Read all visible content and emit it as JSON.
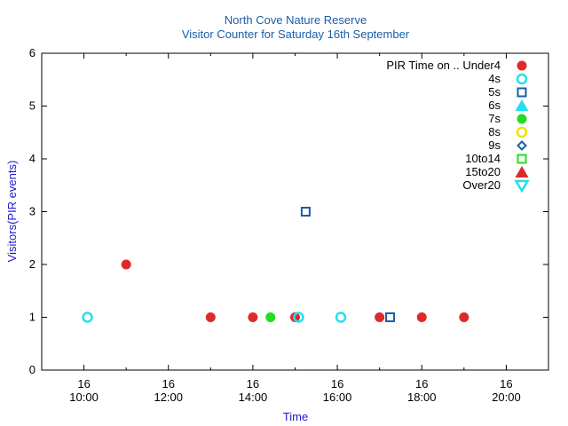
{
  "chart_data": {
    "type": "scatter",
    "title": "North Cove Nature Reserve",
    "subtitle": "Visitor Counter for Saturday 16th September",
    "xlabel": "Time",
    "ylabel": "Visitors(PIR events)",
    "legend_title": "PIR Time on ..",
    "legend_position": "top-right",
    "grid": false,
    "x_range": [
      "09:00",
      "21:00"
    ],
    "y_range": [
      0,
      6
    ],
    "x_ticks": [
      {
        "time": "10:00",
        "day": "16",
        "label": "10:00"
      },
      {
        "time": "12:00",
        "day": "16",
        "label": "12:00"
      },
      {
        "time": "14:00",
        "day": "16",
        "label": "14:00"
      },
      {
        "time": "16:00",
        "day": "16",
        "label": "16:00"
      },
      {
        "time": "18:00",
        "day": "16",
        "label": "18:00"
      },
      {
        "time": "20:00",
        "day": "16",
        "label": "20:00"
      }
    ],
    "y_ticks": [
      "0",
      "1",
      "2",
      "3",
      "4",
      "5",
      "6"
    ],
    "series": [
      {
        "name": "Under4",
        "marker": "filled-circle",
        "color": "#dd2a2a",
        "points": [
          {
            "x": "11:00",
            "y": 2
          },
          {
            "x": "13:00",
            "y": 1
          },
          {
            "x": "14:00",
            "y": 1
          },
          {
            "x": "15:00",
            "y": 1
          },
          {
            "x": "17:00",
            "y": 1
          },
          {
            "x": "18:00",
            "y": 1
          },
          {
            "x": "19:00",
            "y": 1
          }
        ]
      },
      {
        "name": "4s",
        "marker": "open-circle",
        "color": "#22e0ee",
        "points": [
          {
            "x": "10:05",
            "y": 1
          },
          {
            "x": "15:05",
            "y": 1
          },
          {
            "x": "16:05",
            "y": 1
          }
        ]
      },
      {
        "name": "5s",
        "marker": "open-square",
        "color": "#1a5ea8",
        "points": [
          {
            "x": "15:15",
            "y": 3
          },
          {
            "x": "17:15",
            "y": 1
          }
        ]
      },
      {
        "name": "6s",
        "marker": "filled-triangle-up",
        "color": "#22e0ee",
        "points": []
      },
      {
        "name": "7s",
        "marker": "filled-circle",
        "color": "#22dd22",
        "points": [
          {
            "x": "14:25",
            "y": 1
          }
        ]
      },
      {
        "name": "8s",
        "marker": "open-circle",
        "color": "#f0e000",
        "points": []
      },
      {
        "name": "9s",
        "marker": "open-diamond",
        "color": "#1a5ea8",
        "points": []
      },
      {
        "name": "10to14",
        "marker": "open-square",
        "color": "#22dd22",
        "points": []
      },
      {
        "name": "15to20",
        "marker": "filled-triangle-up",
        "color": "#dd2a2a",
        "points": []
      },
      {
        "name": "Over20",
        "marker": "open-triangle-down",
        "color": "#22e0ee",
        "points": []
      }
    ]
  }
}
